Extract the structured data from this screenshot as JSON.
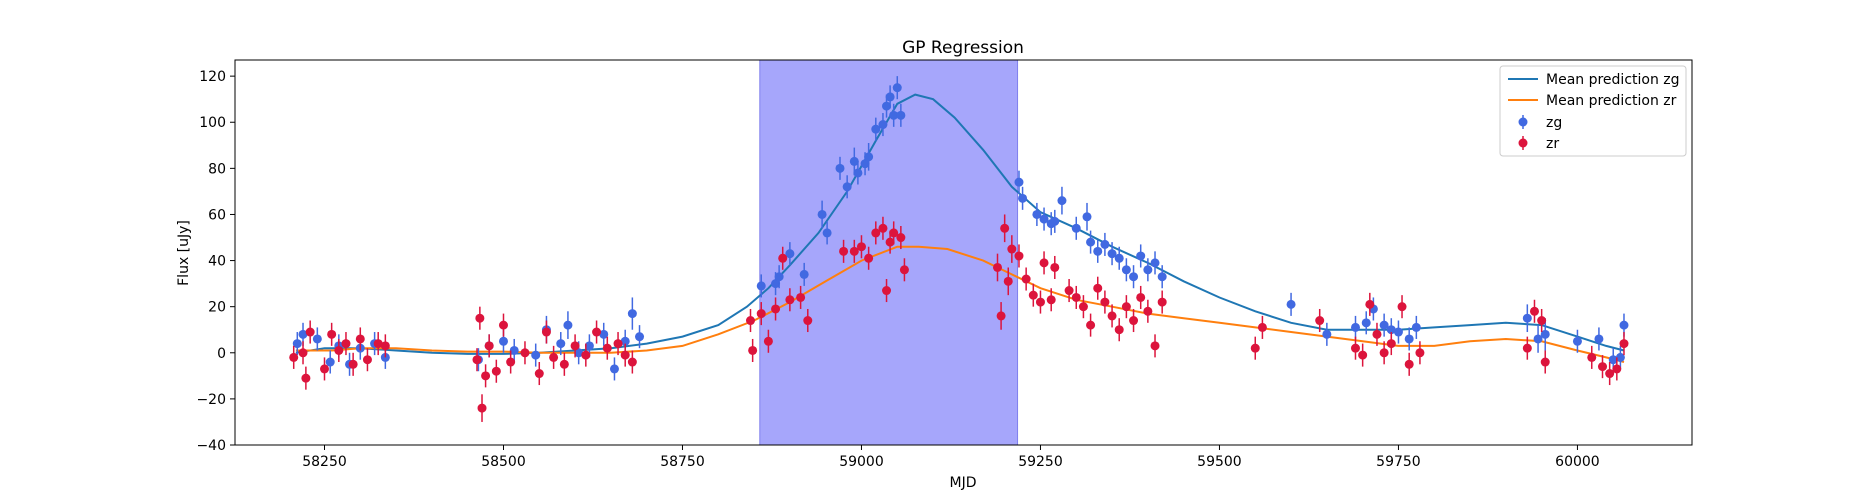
{
  "chart_data": {
    "type": "scatter",
    "title": "GP Regression",
    "xlabel": "MJD",
    "ylabel": "Flux [uJy]",
    "xlim": [
      58125,
      60160
    ],
    "ylim": [
      -40,
      127
    ],
    "xticks": [
      58250,
      58500,
      58750,
      59000,
      59250,
      59500,
      59750,
      60000
    ],
    "yticks": [
      -40,
      -20,
      0,
      20,
      40,
      60,
      80,
      100,
      120
    ],
    "grid": false,
    "legend_position": "top-right",
    "legend": [
      "Mean prediction zg",
      "Mean prediction zr",
      "zg",
      "zr"
    ],
    "shaded_region": {
      "x_start": 58858,
      "x_end": 59218,
      "color": "#a6a6fb"
    },
    "series": [
      {
        "name": "Mean prediction zg",
        "kind": "line",
        "color": "#1f77b4",
        "points": [
          [
            58210,
            0
          ],
          [
            58250,
            2
          ],
          [
            58300,
            2
          ],
          [
            58350,
            1
          ],
          [
            58400,
            0
          ],
          [
            58450,
            -0.5
          ],
          [
            58500,
            -0.5
          ],
          [
            58550,
            0
          ],
          [
            58600,
            1
          ],
          [
            58650,
            2
          ],
          [
            58700,
            4
          ],
          [
            58750,
            7
          ],
          [
            58800,
            12
          ],
          [
            58840,
            20
          ],
          [
            58870,
            28
          ],
          [
            58900,
            38
          ],
          [
            58940,
            52
          ],
          [
            58980,
            70
          ],
          [
            59020,
            92
          ],
          [
            59050,
            108
          ],
          [
            59075,
            112
          ],
          [
            59100,
            110
          ],
          [
            59130,
            102
          ],
          [
            59170,
            88
          ],
          [
            59210,
            72
          ],
          [
            59250,
            61
          ],
          [
            59300,
            54
          ],
          [
            59350,
            46
          ],
          [
            59400,
            39
          ],
          [
            59450,
            31
          ],
          [
            59500,
            24
          ],
          [
            59550,
            18
          ],
          [
            59600,
            13
          ],
          [
            59650,
            10
          ],
          [
            59700,
            10
          ],
          [
            59750,
            10
          ],
          [
            59800,
            11
          ],
          [
            59850,
            12
          ],
          [
            59900,
            13
          ],
          [
            59950,
            12
          ],
          [
            60000,
            7
          ],
          [
            60040,
            3
          ],
          [
            60065,
            1
          ]
        ]
      },
      {
        "name": "Mean prediction zr",
        "kind": "line",
        "color": "#ff7f0e",
        "points": [
          [
            58210,
            1
          ],
          [
            58260,
            1
          ],
          [
            58300,
            2
          ],
          [
            58350,
            2
          ],
          [
            58400,
            1
          ],
          [
            58450,
            0.5
          ],
          [
            58500,
            0.5
          ],
          [
            58550,
            0
          ],
          [
            58600,
            0
          ],
          [
            58650,
            0
          ],
          [
            58700,
            1
          ],
          [
            58750,
            3
          ],
          [
            58800,
            8
          ],
          [
            58850,
            14
          ],
          [
            58900,
            22
          ],
          [
            58950,
            31
          ],
          [
            59000,
            40
          ],
          [
            59050,
            46
          ],
          [
            59080,
            46
          ],
          [
            59120,
            45
          ],
          [
            59170,
            40
          ],
          [
            59210,
            34
          ],
          [
            59250,
            28
          ],
          [
            59300,
            23
          ],
          [
            59350,
            20
          ],
          [
            59400,
            17
          ],
          [
            59450,
            15
          ],
          [
            59500,
            13
          ],
          [
            59550,
            11
          ],
          [
            59600,
            9
          ],
          [
            59650,
            7
          ],
          [
            59700,
            5
          ],
          [
            59750,
            3
          ],
          [
            59800,
            3
          ],
          [
            59850,
            5
          ],
          [
            59900,
            6
          ],
          [
            59950,
            5
          ],
          [
            60000,
            1
          ],
          [
            60040,
            -2
          ],
          [
            60065,
            -4
          ]
        ]
      },
      {
        "name": "zg",
        "kind": "errorbar",
        "color": "#4169e1",
        "points": [
          [
            58212,
            4,
            5
          ],
          [
            58220,
            8,
            5
          ],
          [
            58240,
            6,
            5
          ],
          [
            58258,
            -4,
            5
          ],
          [
            58270,
            3,
            5
          ],
          [
            58285,
            -5,
            5
          ],
          [
            58300,
            2,
            5
          ],
          [
            58320,
            4,
            5
          ],
          [
            58335,
            -2,
            5
          ],
          [
            58465,
            -3,
            5
          ],
          [
            58480,
            3,
            5
          ],
          [
            58500,
            5,
            5
          ],
          [
            58515,
            1,
            5
          ],
          [
            58545,
            -1,
            5
          ],
          [
            58560,
            10,
            6
          ],
          [
            58580,
            4,
            5
          ],
          [
            58590,
            12,
            6
          ],
          [
            58605,
            0,
            5
          ],
          [
            58620,
            3,
            5
          ],
          [
            58640,
            8,
            5
          ],
          [
            58655,
            -7,
            5
          ],
          [
            58670,
            5,
            5
          ],
          [
            58680,
            17,
            7
          ],
          [
            58690,
            7,
            5
          ],
          [
            58860,
            29,
            5
          ],
          [
            58880,
            30,
            5
          ],
          [
            58885,
            33,
            5
          ],
          [
            58900,
            43,
            5
          ],
          [
            58920,
            34,
            5
          ],
          [
            58945,
            60,
            6
          ],
          [
            58952,
            52,
            5
          ],
          [
            58970,
            80,
            5
          ],
          [
            58980,
            72,
            5
          ],
          [
            58990,
            83,
            6
          ],
          [
            58995,
            78,
            5
          ],
          [
            59005,
            82,
            5
          ],
          [
            59010,
            85,
            6
          ],
          [
            59020,
            97,
            5
          ],
          [
            59030,
            99,
            5
          ],
          [
            59035,
            107,
            5
          ],
          [
            59040,
            111,
            5
          ],
          [
            59045,
            103,
            5
          ],
          [
            59050,
            115,
            5
          ],
          [
            59055,
            103,
            5
          ],
          [
            59220,
            74,
            5
          ],
          [
            59225,
            67,
            5
          ],
          [
            59245,
            60,
            5
          ],
          [
            59255,
            58,
            5
          ],
          [
            59265,
            56,
            5
          ],
          [
            59270,
            57,
            5
          ],
          [
            59280,
            66,
            6
          ],
          [
            59300,
            54,
            5
          ],
          [
            59315,
            59,
            6
          ],
          [
            59320,
            48,
            5
          ],
          [
            59330,
            44,
            5
          ],
          [
            59340,
            47,
            5
          ],
          [
            59350,
            43,
            5
          ],
          [
            59360,
            41,
            5
          ],
          [
            59370,
            36,
            5
          ],
          [
            59380,
            33,
            5
          ],
          [
            59390,
            42,
            5
          ],
          [
            59400,
            36,
            5
          ],
          [
            59410,
            39,
            5
          ],
          [
            59420,
            33,
            5
          ],
          [
            59600,
            21,
            5
          ],
          [
            59650,
            8,
            5
          ],
          [
            59690,
            11,
            5
          ],
          [
            59705,
            13,
            5
          ],
          [
            59715,
            19,
            5
          ],
          [
            59730,
            12,
            5
          ],
          [
            59740,
            10,
            5
          ],
          [
            59750,
            9,
            5
          ],
          [
            59765,
            6,
            5
          ],
          [
            59775,
            11,
            5
          ],
          [
            59930,
            15,
            6
          ],
          [
            59945,
            6,
            6
          ],
          [
            59955,
            8,
            7
          ],
          [
            60000,
            5,
            5
          ],
          [
            60030,
            6,
            5
          ],
          [
            60050,
            -3,
            5
          ],
          [
            60060,
            -2,
            5
          ],
          [
            60065,
            12,
            5
          ]
        ]
      },
      {
        "name": "zr",
        "kind": "errorbar",
        "color": "#dc143c",
        "points": [
          [
            58207,
            -2,
            5
          ],
          [
            58220,
            0,
            5
          ],
          [
            58224,
            -11,
            5
          ],
          [
            58230,
            9,
            5
          ],
          [
            58250,
            -7,
            5
          ],
          [
            58260,
            8,
            5
          ],
          [
            58270,
            1,
            5
          ],
          [
            58280,
            4,
            5
          ],
          [
            58290,
            -5,
            5
          ],
          [
            58300,
            6,
            5
          ],
          [
            58310,
            -3,
            5
          ],
          [
            58325,
            4,
            5
          ],
          [
            58335,
            3,
            5
          ],
          [
            58463,
            -3,
            5
          ],
          [
            58467,
            15,
            5
          ],
          [
            58470,
            -24,
            6
          ],
          [
            58475,
            -10,
            5
          ],
          [
            58480,
            3,
            5
          ],
          [
            58490,
            -8,
            5
          ],
          [
            58500,
            12,
            5
          ],
          [
            58510,
            -4,
            5
          ],
          [
            58530,
            0,
            5
          ],
          [
            58550,
            -9,
            5
          ],
          [
            58560,
            9,
            5
          ],
          [
            58570,
            -2,
            5
          ],
          [
            58585,
            -5,
            5
          ],
          [
            58600,
            3,
            5
          ],
          [
            58615,
            -1,
            5
          ],
          [
            58630,
            9,
            5
          ],
          [
            58645,
            2,
            5
          ],
          [
            58660,
            4,
            5
          ],
          [
            58670,
            -1,
            5
          ],
          [
            58680,
            -4,
            5
          ],
          [
            58845,
            14,
            5
          ],
          [
            58848,
            1,
            5
          ],
          [
            58860,
            17,
            5
          ],
          [
            58870,
            5,
            5
          ],
          [
            58880,
            19,
            5
          ],
          [
            58890,
            41,
            5
          ],
          [
            58900,
            23,
            5
          ],
          [
            58915,
            24,
            5
          ],
          [
            58925,
            14,
            5
          ],
          [
            58975,
            44,
            5
          ],
          [
            58990,
            44,
            5
          ],
          [
            59000,
            46,
            5
          ],
          [
            59010,
            41,
            5
          ],
          [
            59020,
            52,
            5
          ],
          [
            59030,
            54,
            5
          ],
          [
            59035,
            27,
            5
          ],
          [
            59040,
            48,
            5
          ],
          [
            59045,
            52,
            5
          ],
          [
            59055,
            50,
            5
          ],
          [
            59060,
            36,
            5
          ],
          [
            59190,
            37,
            6
          ],
          [
            59195,
            16,
            6
          ],
          [
            59200,
            54,
            6
          ],
          [
            59205,
            31,
            6
          ],
          [
            59210,
            45,
            6
          ],
          [
            59220,
            42,
            5
          ],
          [
            59230,
            32,
            5
          ],
          [
            59240,
            25,
            5
          ],
          [
            59250,
            22,
            5
          ],
          [
            59255,
            39,
            5
          ],
          [
            59265,
            23,
            5
          ],
          [
            59270,
            37,
            5
          ],
          [
            59290,
            27,
            5
          ],
          [
            59300,
            24,
            5
          ],
          [
            59310,
            20,
            5
          ],
          [
            59320,
            12,
            5
          ],
          [
            59330,
            28,
            5
          ],
          [
            59340,
            22,
            5
          ],
          [
            59350,
            16,
            5
          ],
          [
            59360,
            10,
            5
          ],
          [
            59370,
            20,
            5
          ],
          [
            59380,
            14,
            5
          ],
          [
            59390,
            24,
            5
          ],
          [
            59400,
            18,
            5
          ],
          [
            59410,
            3,
            5
          ],
          [
            59420,
            22,
            5
          ],
          [
            59550,
            2,
            5
          ],
          [
            59560,
            11,
            5
          ],
          [
            59640,
            14,
            5
          ],
          [
            59690,
            2,
            5
          ],
          [
            59700,
            -1,
            5
          ],
          [
            59710,
            21,
            5
          ],
          [
            59720,
            8,
            5
          ],
          [
            59730,
            0,
            5
          ],
          [
            59740,
            4,
            5
          ],
          [
            59755,
            20,
            5
          ],
          [
            59765,
            -5,
            5
          ],
          [
            59780,
            0,
            5
          ],
          [
            59930,
            2,
            5
          ],
          [
            59940,
            18,
            5
          ],
          [
            59950,
            14,
            5
          ],
          [
            59955,
            -4,
            5
          ],
          [
            60020,
            -2,
            5
          ],
          [
            60035,
            -6,
            5
          ],
          [
            60045,
            -9,
            5
          ],
          [
            60055,
            -7,
            5
          ],
          [
            60065,
            4,
            5
          ]
        ]
      }
    ]
  }
}
